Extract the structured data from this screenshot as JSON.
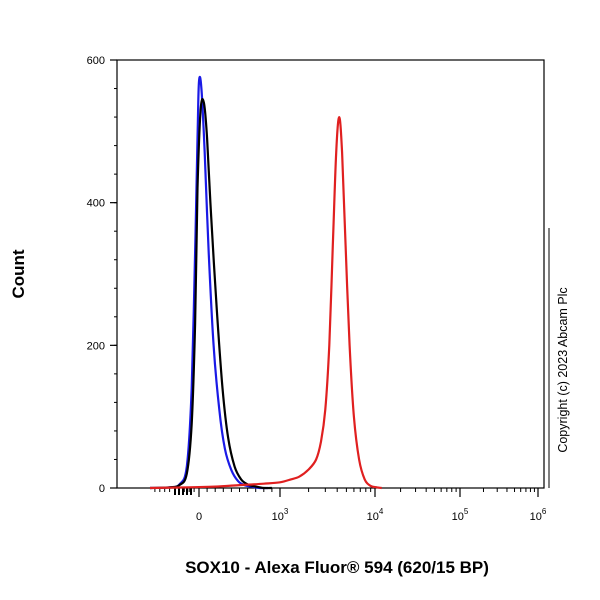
{
  "chart_data": {
    "type": "line",
    "subtype": "flow-cytometry-histogram",
    "ylabel": "Count",
    "xlabel": "SOX10 - Alexa Fluor® 594 (620/15 BP)",
    "xscale": "biexponential",
    "ylim": [
      0,
      600
    ],
    "y_ticks": [
      "0",
      "200",
      "400",
      "600"
    ],
    "x_ticks": [
      {
        "base": "0",
        "exp": ""
      },
      {
        "base": "10",
        "exp": "3"
      },
      {
        "base": "10",
        "exp": "4"
      },
      {
        "base": "10",
        "exp": "5"
      },
      {
        "base": "10",
        "exp": "6"
      }
    ],
    "copyright": "Copyright (c) 2023 Abcam Plc",
    "series": [
      {
        "color": "#1a1ae6",
        "x": [
          -1000,
          -600,
          -400,
          -250,
          -150,
          -80,
          -30,
          0,
          30,
          70,
          120,
          180,
          250,
          320,
          400,
          480,
          560,
          650,
          750,
          850
        ],
        "y": [
          0,
          1,
          5,
          30,
          140,
          330,
          490,
          570,
          560,
          470,
          330,
          200,
          110,
          55,
          25,
          10,
          4,
          2,
          0,
          0
        ]
      },
      {
        "color": "#000000",
        "x": [
          -1000,
          -600,
          -400,
          -250,
          -150,
          -80,
          -30,
          20,
          60,
          100,
          150,
          220,
          290,
          360,
          440,
          520,
          600,
          700,
          800,
          900
        ],
        "y": [
          0,
          1,
          4,
          20,
          90,
          230,
          420,
          530,
          540,
          490,
          380,
          250,
          140,
          70,
          30,
          12,
          5,
          2,
          0,
          0
        ]
      },
      {
        "color": "#e02020",
        "x": [
          -1000,
          -200,
          200,
          500,
          800,
          1000,
          1300,
          1600,
          2000,
          2400,
          2700,
          3000,
          3300,
          3600,
          3900,
          4200,
          4500,
          4900,
          5400,
          6000,
          6800,
          7800,
          9000,
          10500,
          12000
        ],
        "y": [
          0,
          1,
          2,
          4,
          6,
          8,
          12,
          16,
          26,
          40,
          65,
          110,
          200,
          340,
          470,
          520,
          470,
          340,
          200,
          100,
          40,
          12,
          3,
          1,
          0
        ]
      }
    ]
  }
}
